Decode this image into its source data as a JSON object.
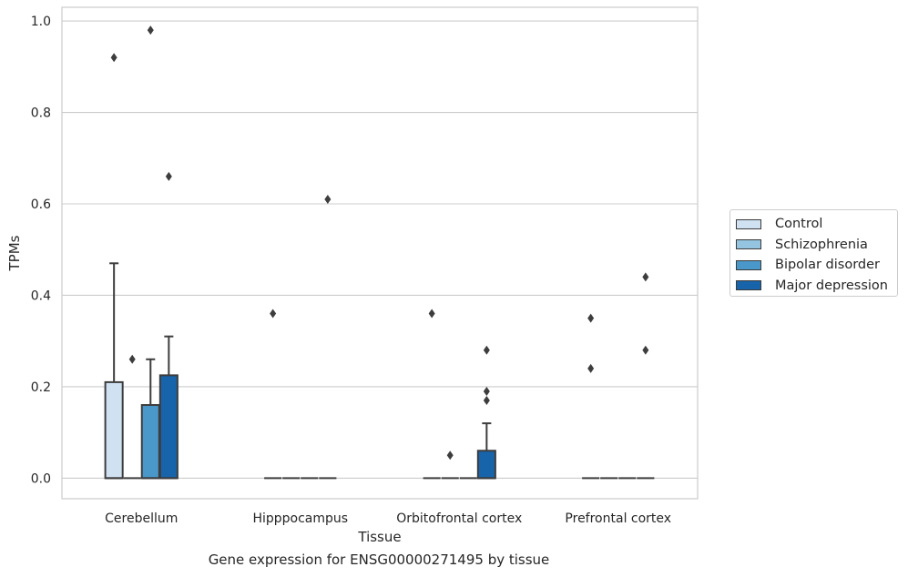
{
  "chart_data": {
    "type": "box",
    "title": "",
    "caption": "Gene expression for ENSG00000271495 by tissue",
    "xlabel": "Tissue",
    "ylabel": "TPMs",
    "ylim": [
      -0.045,
      1.03
    ],
    "yticks": [
      0.0,
      0.2,
      0.4,
      0.6,
      0.8,
      1.0
    ],
    "ytick_labels": [
      "0.0",
      "0.2",
      "0.4",
      "0.6",
      "0.8",
      "1.0"
    ],
    "grid": "horizontal",
    "legend_position": "right-outside",
    "categories": [
      "Cerebellum",
      "Hipppocampus",
      "Orbitofrontal cortex",
      "Prefrontal cortex"
    ],
    "series": [
      {
        "name": "Control",
        "color": "#d0e1f2",
        "boxes": [
          {
            "q1": 0.0,
            "median": 0.0,
            "q3": 0.21,
            "whisker_low": 0.0,
            "whisker_high": 0.47,
            "outliers": [
              0.92
            ]
          },
          {
            "q1": 0.0,
            "median": 0.0,
            "q3": 0.0,
            "whisker_low": 0.0,
            "whisker_high": 0.0,
            "outliers": [
              0.36
            ]
          },
          {
            "q1": 0.0,
            "median": 0.0,
            "q3": 0.0,
            "whisker_low": 0.0,
            "whisker_high": 0.0,
            "outliers": [
              0.36
            ]
          },
          {
            "q1": 0.0,
            "median": 0.0,
            "q3": 0.0,
            "whisker_low": 0.0,
            "whisker_high": 0.0,
            "outliers": [
              0.35,
              0.24
            ]
          }
        ]
      },
      {
        "name": "Schizophrenia",
        "color": "#94c4df",
        "boxes": [
          {
            "q1": 0.0,
            "median": 0.0,
            "q3": 0.0,
            "whisker_low": 0.0,
            "whisker_high": 0.0,
            "outliers": [
              0.26
            ]
          },
          {
            "q1": 0.0,
            "median": 0.0,
            "q3": 0.0,
            "whisker_low": 0.0,
            "whisker_high": 0.0,
            "outliers": []
          },
          {
            "q1": 0.0,
            "median": 0.0,
            "q3": 0.0,
            "whisker_low": 0.0,
            "whisker_high": 0.0,
            "outliers": [
              0.05
            ]
          },
          {
            "q1": 0.0,
            "median": 0.0,
            "q3": 0.0,
            "whisker_low": 0.0,
            "whisker_high": 0.0,
            "outliers": []
          }
        ]
      },
      {
        "name": "Bipolar disorder",
        "color": "#4a98c9",
        "boxes": [
          {
            "q1": 0.0,
            "median": 0.0,
            "q3": 0.16,
            "whisker_low": 0.0,
            "whisker_high": 0.26,
            "outliers": [
              0.98
            ]
          },
          {
            "q1": 0.0,
            "median": 0.0,
            "q3": 0.0,
            "whisker_low": 0.0,
            "whisker_high": 0.0,
            "outliers": []
          },
          {
            "q1": 0.0,
            "median": 0.0,
            "q3": 0.0,
            "whisker_low": 0.0,
            "whisker_high": 0.0,
            "outliers": []
          },
          {
            "q1": 0.0,
            "median": 0.0,
            "q3": 0.0,
            "whisker_low": 0.0,
            "whisker_high": 0.0,
            "outliers": []
          }
        ]
      },
      {
        "name": "Major depression",
        "color": "#1764ab",
        "boxes": [
          {
            "q1": 0.0,
            "median": 0.0,
            "q3": 0.225,
            "whisker_low": 0.0,
            "whisker_high": 0.31,
            "outliers": [
              0.66
            ]
          },
          {
            "q1": 0.0,
            "median": 0.0,
            "q3": 0.0,
            "whisker_low": 0.0,
            "whisker_high": 0.0,
            "outliers": [
              0.61
            ]
          },
          {
            "q1": 0.0,
            "median": 0.0,
            "q3": 0.06,
            "whisker_low": 0.0,
            "whisker_high": 0.12,
            "outliers": [
              0.28,
              0.19,
              0.17
            ]
          },
          {
            "q1": 0.0,
            "median": 0.0,
            "q3": 0.0,
            "whisker_low": 0.0,
            "whisker_high": 0.0,
            "outliers": [
              0.44,
              0.28
            ]
          }
        ]
      }
    ]
  }
}
